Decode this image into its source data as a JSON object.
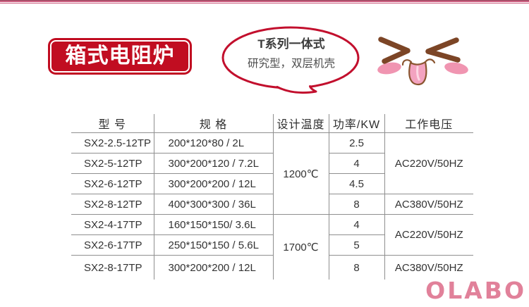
{
  "page_title": "箱式电阻炉",
  "topbar": {
    "style": "double-pink-rule"
  },
  "bubble": {
    "line1": "T系列一体式",
    "line2": "研究型，双层机壳"
  },
  "face": {
    "left_eye": "closed-eye-greater-than",
    "right_eye": "closed-eye-less-than",
    "blush": "pink-cheek-blush",
    "mouth": "tongue-out"
  },
  "table": {
    "headers": [
      "型 号",
      "规 格",
      "设计温度",
      "功率/KW",
      "工作电压"
    ],
    "rows": [
      {
        "model": "SX2-2.5-12TP",
        "spec": "200*120*80 / 2L",
        "temp": {
          "label": "1200℃",
          "span": 4
        },
        "power": "2.5",
        "voltage": {
          "label": "AC220V/50HZ",
          "span": 3
        }
      },
      {
        "model": "SX2-5-12TP",
        "spec": "300*200*120 / 7.2L",
        "power": "4"
      },
      {
        "model": "SX2-6-12TP",
        "spec": "300*200*200 / 12L",
        "power": "4.5"
      },
      {
        "model": "SX2-8-12TP",
        "spec": "400*300*300 / 36L",
        "power": "8",
        "voltage": {
          "label": "AC380V/50HZ",
          "span": 1
        }
      },
      {
        "model": "SX2-4-17TP",
        "spec": "160*150*150/ 3.6L",
        "temp": {
          "label": "1700℃",
          "span": 3
        },
        "power": "4",
        "voltage": {
          "label": "AC220V/50HZ",
          "span": 2
        }
      },
      {
        "model": "SX2-6-17TP",
        "spec": "250*150*150 / 5.6L",
        "power": "5"
      },
      {
        "model": "SX2-8-17TP",
        "spec": "300*200*200 / 12L",
        "power": "8",
        "voltage": {
          "label": "AC380V/50HZ",
          "span": 1
        }
      }
    ]
  },
  "logo": "OLABO",
  "colors": {
    "badge_red": "#c10d21",
    "bubble_stroke": "#c20f2d",
    "topbar_pink": "#cc5f81",
    "table_border": "#8f8f8f",
    "table_text": "#333333",
    "eye_brown": "#7c4526",
    "mouth_brown": "#8a5530",
    "blush_pink": "#f095b1",
    "tongue_pink": "#f3a3c0",
    "tongue_crease": "#fdd7e4",
    "logo_pink": "#e1819a"
  }
}
